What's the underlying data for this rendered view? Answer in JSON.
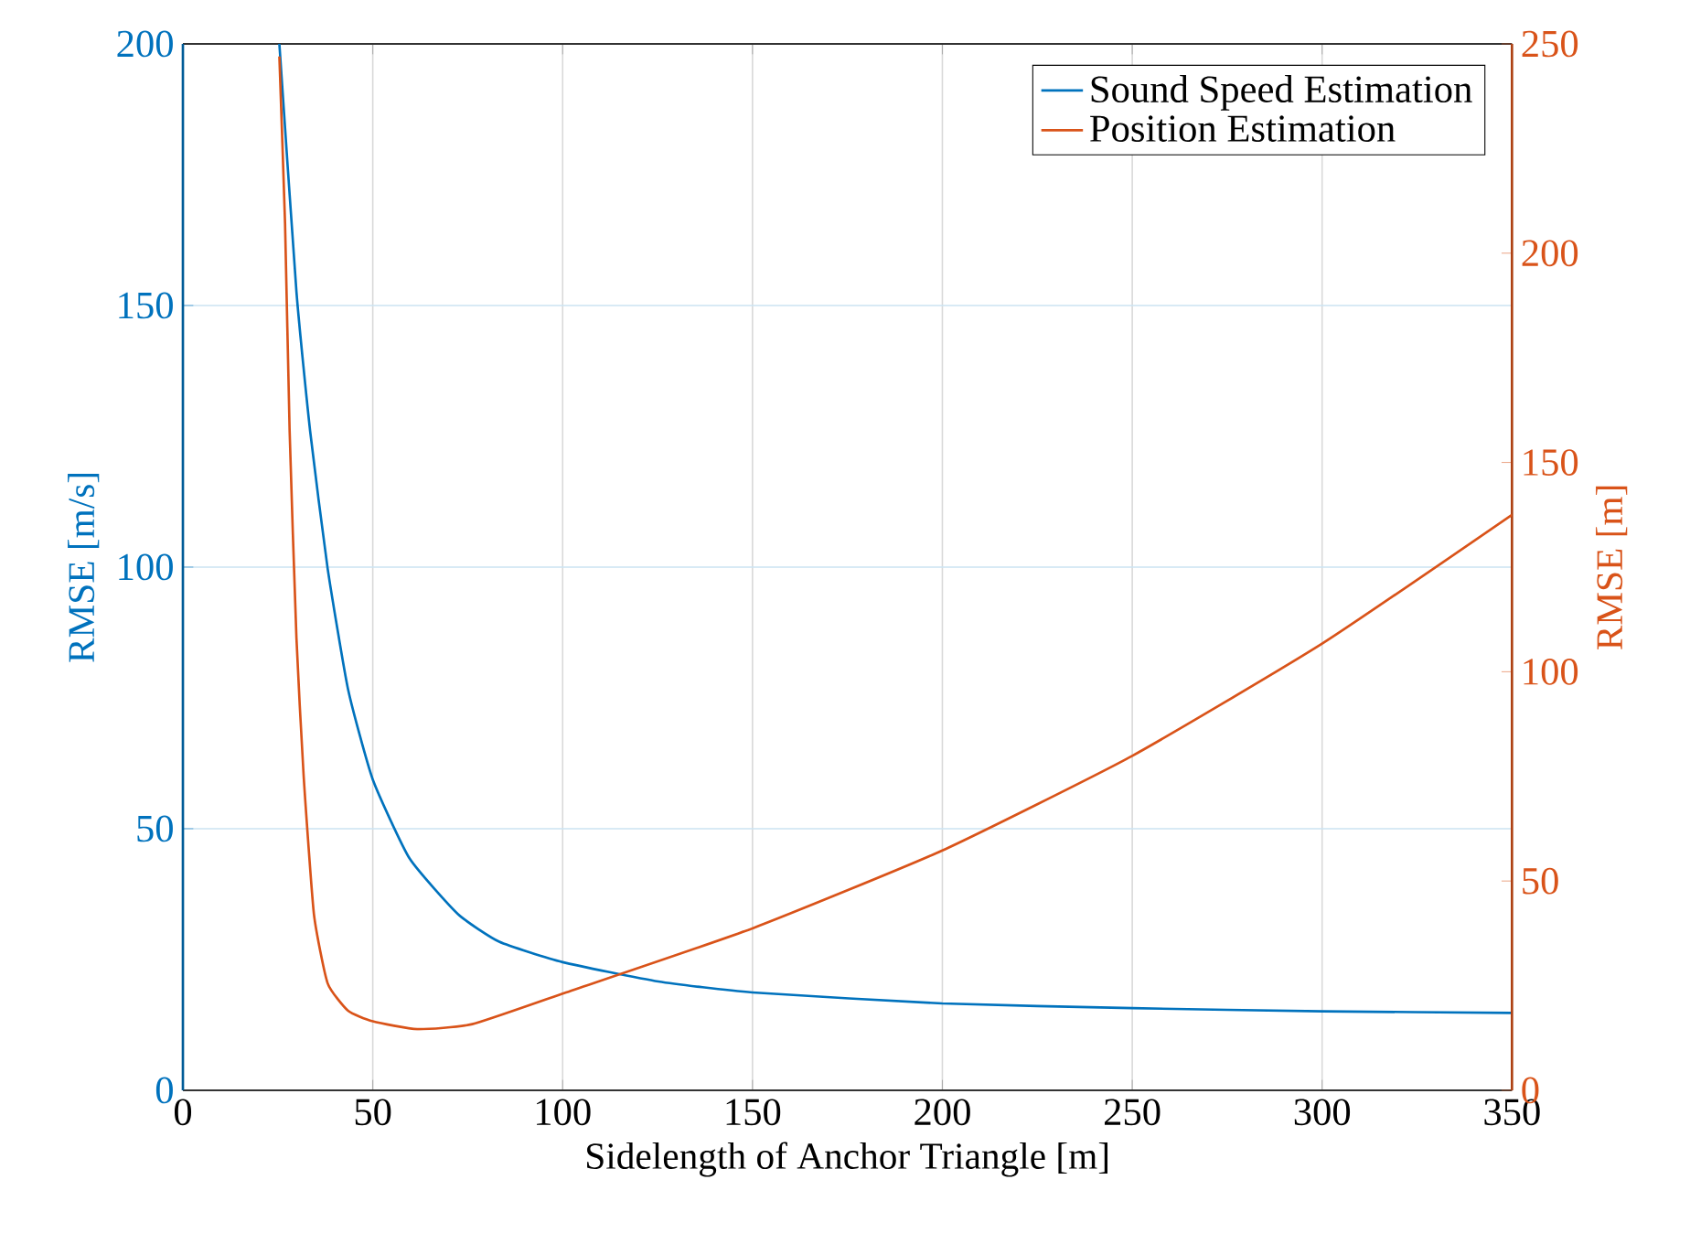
{
  "chart_data": {
    "type": "line",
    "xlabel": "Sidelength of Anchor Triangle [m]",
    "ylabel": "RMSE [m/s]",
    "y2label": "RMSE [m]",
    "xlim": [
      0,
      350
    ],
    "xticks": [
      0,
      50,
      100,
      150,
      200,
      250,
      300,
      350
    ],
    "ylim": [
      0,
      200
    ],
    "yticks": [
      0,
      50,
      100,
      150,
      200
    ],
    "y2lim": [
      0,
      250
    ],
    "y2ticks": [
      0,
      50,
      100,
      150,
      200,
      250
    ],
    "grid": true,
    "legend": "top right",
    "series": [
      {
        "name": "Sound Speed Estimation",
        "color": "#0072bd",
        "x": [
          25.4,
          29.9,
          33.5,
          38.1,
          43.5,
          50,
          59.7,
          72.4,
          83.3,
          100,
          125.2,
          150,
          200,
          250,
          300,
          350
        ],
        "values": [
          200,
          152.6,
          126,
          99.8,
          76.6,
          59.4,
          44.3,
          33.7,
          28.4,
          24.5,
          20.8,
          18.7,
          16.6,
          15.7,
          15.1,
          14.8
        ]
      },
      {
        "name": "Position Estimation",
        "color": "#d95319",
        "axis": "y2",
        "x": [
          25.4,
          26.9,
          28.1,
          29.9,
          31.8,
          34.5,
          38.1,
          43.5,
          50,
          61.7,
          76.2,
          100,
          150,
          200,
          250,
          300,
          350
        ],
        "values": [
          247,
          207,
          157.6,
          108,
          75,
          42.1,
          25.6,
          19,
          16.5,
          14.6,
          15.8,
          23.1,
          38.7,
          57.3,
          79.9,
          106.7,
          137.5
        ]
      }
    ]
  }
}
